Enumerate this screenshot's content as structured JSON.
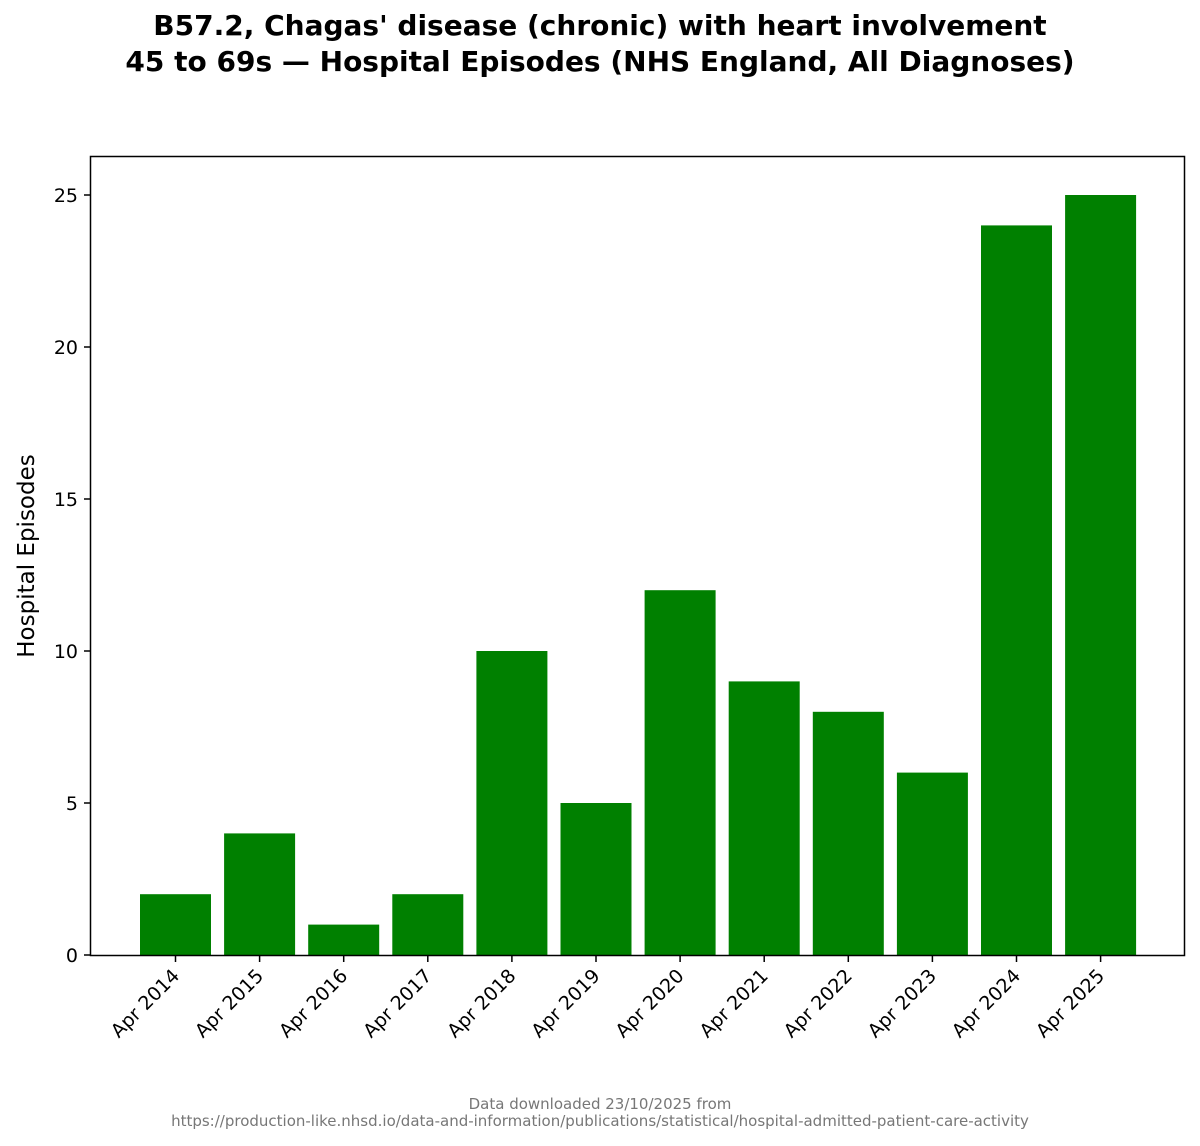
{
  "title": {
    "line1": "B57.2, Chagas' disease (chronic) with heart involvement",
    "line2": "45 to 69s — Hospital Episodes (NHS England, All Diagnoses)"
  },
  "footer": {
    "line1": "Data downloaded 23/10/2025 from",
    "line2": "https://production-like.nhsd.io/data-and-information/publications/statistical/hospital-admitted-patient-care-activity"
  },
  "colors": {
    "bar": "#008000",
    "axis": "#000000",
    "footer": "#777777"
  },
  "chart_data": {
    "type": "bar",
    "categories": [
      "Apr 2014",
      "Apr 2015",
      "Apr 2016",
      "Apr 2017",
      "Apr 2018",
      "Apr 2019",
      "Apr 2020",
      "Apr 2021",
      "Apr 2022",
      "Apr 2023",
      "Apr 2024",
      "Apr 2025"
    ],
    "values": [
      2,
      4,
      1,
      2,
      10,
      5,
      12,
      9,
      8,
      6,
      24,
      25
    ],
    "xlabel": "",
    "ylabel": "Hospital Episodes",
    "ylim": [
      0,
      26.25
    ],
    "yticks": [
      0,
      5,
      10,
      15,
      20,
      25
    ],
    "grid": false,
    "legend": "none"
  }
}
